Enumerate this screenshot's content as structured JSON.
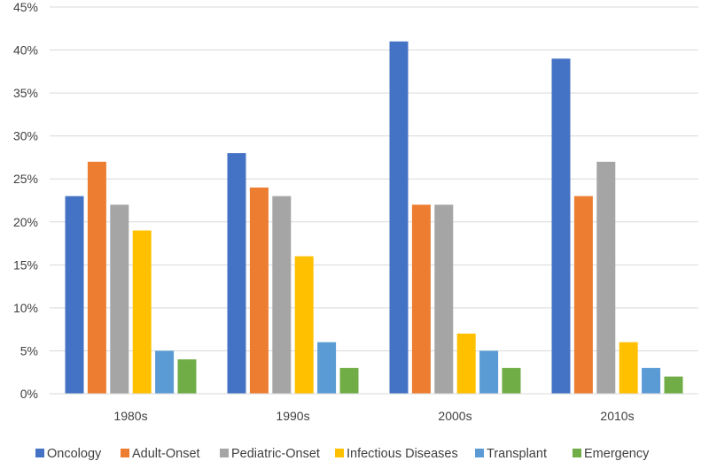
{
  "chart_data": {
    "type": "bar",
    "categories": [
      "1980s",
      "1990s",
      "2000s",
      "2010s"
    ],
    "series": [
      {
        "name": "Oncology",
        "color": "#4472c4",
        "values": [
          23,
          28,
          41,
          39
        ]
      },
      {
        "name": "Adult-Onset",
        "color": "#ed7d31",
        "values": [
          27,
          24,
          22,
          23
        ]
      },
      {
        "name": "Pediatric-Onset",
        "color": "#a5a5a5",
        "values": [
          22,
          23,
          22,
          27
        ]
      },
      {
        "name": "Infectious Diseases",
        "color": "#ffc000",
        "values": [
          19,
          16,
          7,
          6
        ]
      },
      {
        "name": "Transplant",
        "color": "#5b9bd5",
        "values": [
          5,
          6,
          5,
          3
        ]
      },
      {
        "name": "Emergency",
        "color": "#70ad47",
        "values": [
          4,
          3,
          3,
          2
        ]
      }
    ],
    "ylim": [
      0,
      45
    ],
    "yticks": [
      "0%",
      "5%",
      "10%",
      "15%",
      "20%",
      "25%",
      "30%",
      "35%",
      "40%",
      "45%"
    ],
    "grid": true,
    "legend_position": "bottom"
  }
}
